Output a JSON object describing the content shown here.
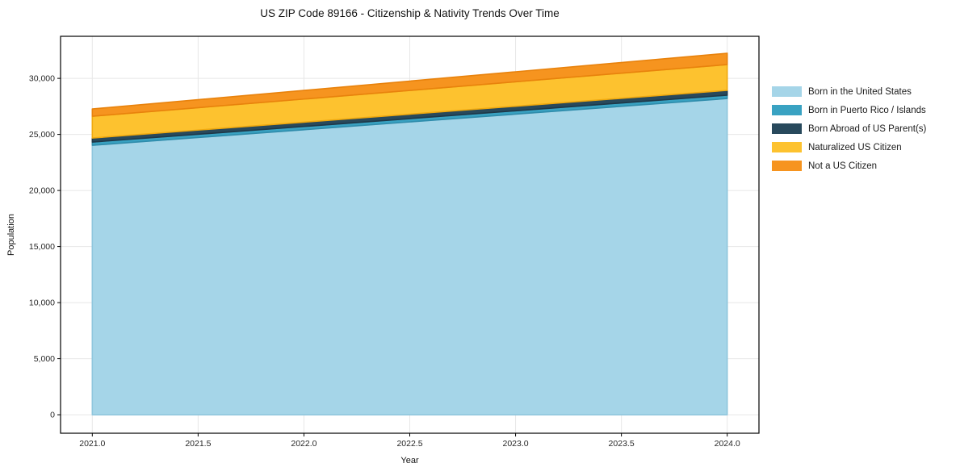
{
  "title": "US ZIP Code 89166 - Citizenship & Nativity Trends Over Time",
  "chart_data": {
    "type": "area",
    "stacked": true,
    "title": "US ZIP Code 89166 - Citizenship & Nativity Trends Over Time",
    "xlabel": "Year",
    "ylabel": "Population",
    "x": [
      2021,
      2022,
      2023,
      2024
    ],
    "series": [
      {
        "name": "Born in the United States",
        "color": "#A5D5E8",
        "edge": "#8FC6DD",
        "values": [
          24030,
          25420,
          26810,
          28200
        ]
      },
      {
        "name": "Born in Puerto Rico / Islands",
        "color": "#39A2C2",
        "edge": "#2F8CAB",
        "values": [
          290,
          290,
          300,
          300
        ]
      },
      {
        "name": "Born Abroad of US Parent(s)",
        "color": "#28495C",
        "edge": "#1E3848",
        "values": [
          360,
          385,
          405,
          430
        ]
      },
      {
        "name": "Naturalized US Citizen",
        "color": "#FDC22F",
        "edge": "#F0A90E",
        "values": [
          1940,
          2060,
          2180,
          2300
        ]
      },
      {
        "name": "Not a US Citizen",
        "color": "#F6941F",
        "edge": "#E8820C",
        "values": [
          650,
          770,
          890,
          1010
        ]
      }
    ],
    "totals": [
      27270,
      28925,
      30585,
      32240
    ],
    "xticks": [
      2021.0,
      2021.5,
      2022.0,
      2022.5,
      2023.0,
      2023.5,
      2024.0
    ],
    "yticks": [
      0,
      5000,
      10000,
      15000,
      20000,
      25000,
      30000
    ],
    "xlim": [
      2020.85,
      2024.15
    ],
    "ylim": [
      -1650,
      33750
    ],
    "grid": true,
    "grid_color": "#e7e7e7",
    "spine_color": "#000000",
    "legend_position": "right"
  }
}
